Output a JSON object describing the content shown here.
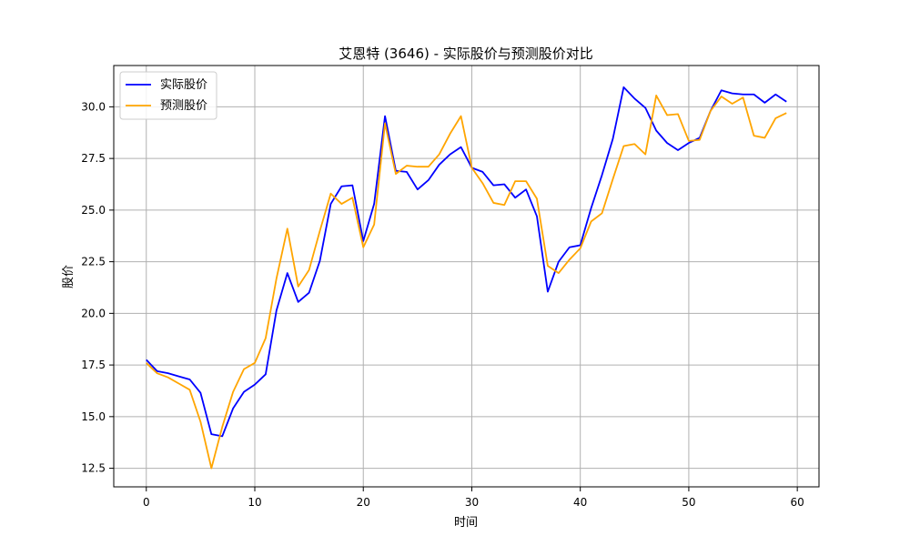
{
  "chart_data": {
    "type": "line",
    "title": "艾恩特 (3646) - 实际股价与预测股价对比",
    "xlabel": "时间",
    "ylabel": "股价",
    "xlim": [
      -3,
      62
    ],
    "ylim": [
      11.6,
      32.0
    ],
    "xticks": [
      0,
      10,
      20,
      30,
      40,
      50,
      60
    ],
    "yticks": [
      12.5,
      15.0,
      17.5,
      20.0,
      22.5,
      25.0,
      27.5,
      30.0
    ],
    "grid": true,
    "legend_position": "top-left",
    "series": [
      {
        "name": "实际股价",
        "color": "#0000ff",
        "x": [
          0,
          1,
          2,
          3,
          4,
          5,
          6,
          7,
          8,
          9,
          10,
          11,
          12,
          13,
          14,
          15,
          16,
          17,
          18,
          19,
          20,
          21,
          22,
          23,
          24,
          25,
          26,
          27,
          28,
          29,
          30,
          31,
          32,
          33,
          34,
          35,
          36,
          37,
          38,
          39,
          40,
          41,
          42,
          43,
          44,
          45,
          46,
          47,
          48,
          49,
          50,
          51,
          52,
          53,
          54,
          55,
          56,
          57,
          58,
          59
        ],
        "values": [
          17.75,
          17.2,
          17.1,
          16.95,
          16.8,
          16.15,
          14.15,
          14.05,
          15.4,
          16.2,
          16.55,
          17.05,
          20.15,
          21.95,
          20.55,
          21.0,
          22.55,
          25.3,
          26.15,
          26.2,
          23.5,
          25.3,
          29.55,
          26.9,
          26.85,
          26.0,
          26.45,
          27.2,
          27.7,
          28.05,
          27.05,
          26.85,
          26.2,
          26.25,
          25.6,
          26.0,
          24.7,
          21.05,
          22.5,
          23.2,
          23.3,
          25.1,
          26.7,
          28.45,
          30.95,
          30.4,
          29.95,
          28.85,
          28.25,
          27.9,
          28.25,
          28.5,
          29.8,
          30.8,
          30.65,
          30.6,
          30.6,
          30.2,
          30.6,
          30.25
        ]
      },
      {
        "name": "预测股价",
        "color": "#ffa500",
        "x": [
          0,
          1,
          2,
          3,
          4,
          5,
          6,
          7,
          8,
          9,
          10,
          11,
          12,
          13,
          14,
          15,
          16,
          17,
          18,
          19,
          20,
          21,
          22,
          23,
          24,
          25,
          26,
          27,
          28,
          29,
          30,
          31,
          32,
          33,
          34,
          35,
          36,
          37,
          38,
          39,
          40,
          41,
          42,
          43,
          44,
          45,
          46,
          47,
          48,
          49,
          50,
          51,
          52,
          53,
          54,
          55,
          56,
          57,
          58,
          59
        ],
        "values": [
          17.6,
          17.1,
          16.9,
          16.6,
          16.3,
          14.75,
          12.5,
          14.5,
          16.2,
          17.3,
          17.6,
          18.8,
          21.7,
          24.1,
          21.3,
          22.1,
          24.0,
          25.8,
          25.3,
          25.6,
          23.2,
          24.3,
          29.2,
          26.75,
          27.15,
          27.1,
          27.1,
          27.7,
          28.7,
          29.55,
          27.05,
          26.3,
          25.35,
          25.25,
          26.4,
          26.4,
          25.55,
          22.3,
          21.95,
          22.6,
          23.15,
          24.45,
          24.85,
          26.5,
          28.1,
          28.2,
          27.7,
          30.55,
          29.6,
          29.65,
          28.35,
          28.4,
          29.8,
          30.5,
          30.15,
          30.45,
          28.6,
          28.5,
          29.45,
          29.7
        ]
      }
    ]
  }
}
